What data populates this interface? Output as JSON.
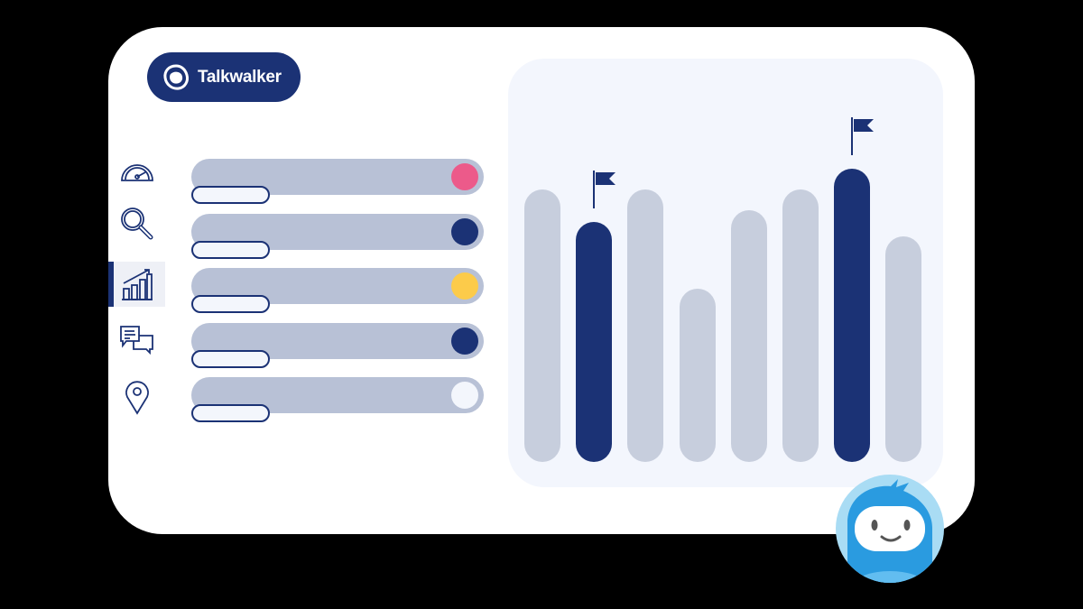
{
  "brand": {
    "name": "Talkwalker",
    "color": "#1b3275"
  },
  "sidebar": {
    "items": [
      {
        "icon": "speedometer-icon",
        "active": false
      },
      {
        "icon": "search-icon",
        "active": false
      },
      {
        "icon": "analytics-chart-icon",
        "active": true
      },
      {
        "icon": "chat-bubbles-icon",
        "active": false
      },
      {
        "icon": "location-pin-icon",
        "active": false
      }
    ]
  },
  "list": {
    "items": [
      {
        "status_color": "#ec5a8a"
      },
      {
        "status_color": "#1b3275"
      },
      {
        "status_color": "#fccb4a"
      },
      {
        "status_color": "#1b3275"
      },
      {
        "status_color": "#f3f6fc"
      }
    ]
  },
  "chart": {
    "bars": [
      {
        "level": 0.93,
        "highlighted": false,
        "flag": false
      },
      {
        "level": 0.82,
        "highlighted": true,
        "flag": true
      },
      {
        "level": 0.93,
        "highlighted": false,
        "flag": false
      },
      {
        "level": 0.59,
        "highlighted": false,
        "flag": false
      },
      {
        "level": 0.86,
        "highlighted": false,
        "flag": false
      },
      {
        "level": 0.93,
        "highlighted": false,
        "flag": false
      },
      {
        "level": 1.0,
        "highlighted": true,
        "flag": true
      },
      {
        "level": 0.77,
        "highlighted": false,
        "flag": false
      }
    ],
    "colors": {
      "bar": "#c7cedd",
      "highlight": "#1b3275"
    }
  },
  "mascot": {
    "icon": "mascot-avatar-icon",
    "color": "#2a9be0"
  }
}
